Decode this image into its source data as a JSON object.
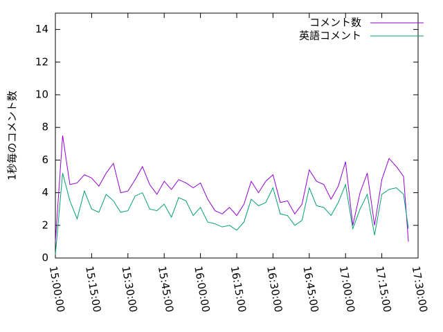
{
  "chart_data": {
    "type": "line",
    "ylabel": "1秒毎のコメント数",
    "x": [
      "15:00:00",
      "15:03:00",
      "15:06:00",
      "15:09:00",
      "15:12:00",
      "15:15:00",
      "15:18:00",
      "15:21:00",
      "15:24:00",
      "15:27:00",
      "15:30:00",
      "15:33:00",
      "15:36:00",
      "15:39:00",
      "15:42:00",
      "15:45:00",
      "15:48:00",
      "15:51:00",
      "15:54:00",
      "15:57:00",
      "16:00:00",
      "16:03:00",
      "16:06:00",
      "16:09:00",
      "16:12:00",
      "16:15:00",
      "16:18:00",
      "16:21:00",
      "16:24:00",
      "16:27:00",
      "16:30:00",
      "16:33:00",
      "16:36:00",
      "16:39:00",
      "16:42:00",
      "16:45:00",
      "16:48:00",
      "16:51:00",
      "16:54:00",
      "16:57:00",
      "17:00:00",
      "17:03:00",
      "17:06:00",
      "17:09:00",
      "17:12:00",
      "17:15:00",
      "17:18:00",
      "17:21:00",
      "17:24:00",
      "17:26:00"
    ],
    "series": [
      {
        "name": "コメント数",
        "color": "#9400d3",
        "values": [
          1.0,
          7.5,
          4.5,
          4.6,
          5.1,
          4.9,
          4.4,
          5.2,
          5.8,
          4.0,
          4.1,
          4.8,
          5.6,
          4.5,
          3.9,
          4.7,
          4.2,
          4.8,
          4.6,
          4.3,
          4.6,
          3.6,
          2.9,
          2.7,
          3.1,
          2.6,
          3.3,
          4.7,
          4.0,
          4.7,
          5.1,
          3.4,
          3.5,
          2.7,
          3.3,
          5.4,
          4.7,
          4.5,
          3.6,
          4.4,
          5.9,
          2.0,
          4.0,
          5.2,
          2.0,
          4.8,
          6.1,
          5.6,
          5.0,
          1.0
        ]
      },
      {
        "name": "英語コメント",
        "color": "#009e73",
        "values": [
          0.2,
          5.2,
          3.5,
          2.4,
          4.1,
          3.0,
          2.8,
          3.9,
          3.5,
          2.8,
          2.9,
          3.8,
          4.0,
          3.0,
          2.9,
          3.3,
          2.5,
          3.7,
          3.5,
          2.6,
          3.1,
          2.2,
          2.1,
          1.9,
          2.0,
          1.7,
          2.2,
          3.6,
          3.2,
          3.4,
          4.3,
          2.7,
          2.6,
          2.0,
          2.3,
          4.3,
          3.2,
          3.1,
          2.6,
          3.4,
          4.5,
          1.8,
          3.0,
          3.9,
          1.4,
          3.9,
          4.2,
          4.3,
          3.9,
          1.8
        ]
      }
    ],
    "xlim": [
      "15:00:00",
      "17:30:00"
    ],
    "xticks": [
      "15:00:00",
      "15:15:00",
      "15:30:00",
      "15:45:00",
      "16:00:00",
      "16:15:00",
      "16:30:00",
      "16:45:00",
      "17:00:00",
      "17:15:00",
      "17:30:00"
    ],
    "ylim": [
      0,
      15
    ],
    "yticks": [
      0,
      2,
      4,
      6,
      8,
      10,
      12,
      14
    ],
    "legend": "top-right"
  }
}
